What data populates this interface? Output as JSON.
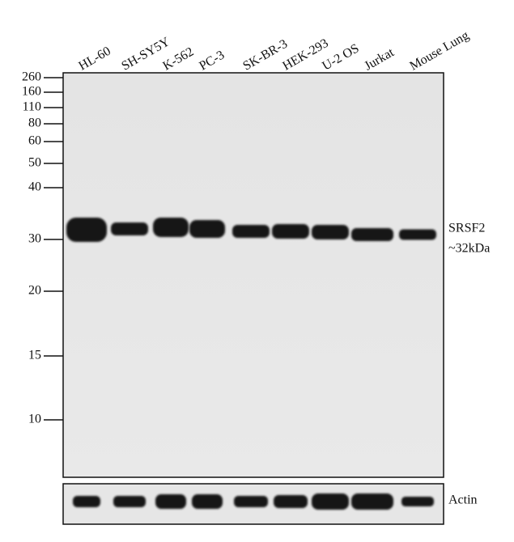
{
  "lanes": [
    "HL-60",
    "SH-SY5Y",
    "K-562",
    "PC-3",
    "SK-BR-3",
    "HEK-293",
    "U-2 OS",
    "Jurkat",
    "Mouse Lung"
  ],
  "markers": [
    260,
    160,
    110,
    80,
    60,
    50,
    40,
    30,
    20,
    15,
    10
  ],
  "bands": {
    "target": "SRSF2",
    "size": "~32kDa",
    "loading": "Actin"
  }
}
